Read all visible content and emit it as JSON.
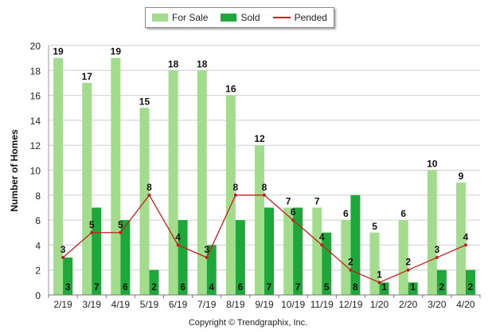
{
  "chart_data": {
    "type": "bar",
    "ylabel": "Number of Homes",
    "xlabel": "",
    "ylim": [
      0,
      20
    ],
    "yticks": [
      0,
      2,
      4,
      6,
      8,
      10,
      12,
      14,
      16,
      18,
      20
    ],
    "grid": true,
    "legend_position": "top-center",
    "categories": [
      "2/19",
      "3/19",
      "4/19",
      "5/19",
      "6/19",
      "7/19",
      "8/19",
      "9/19",
      "10/19",
      "11/19",
      "12/19",
      "1/20",
      "2/20",
      "3/20",
      "4/20"
    ],
    "series": [
      {
        "name": "For Sale",
        "kind": "bar",
        "color": "#a2dc8c",
        "values": [
          19,
          17,
          19,
          15,
          18,
          18,
          16,
          12,
          7,
          7,
          6,
          5,
          6,
          10,
          9
        ]
      },
      {
        "name": "Sold",
        "kind": "bar",
        "color": "#1fa83a",
        "values": [
          3,
          7,
          6,
          2,
          6,
          4,
          6,
          7,
          7,
          5,
          8,
          1,
          1,
          2,
          2
        ]
      },
      {
        "name": "Pended",
        "kind": "line",
        "color": "#c41e1e",
        "values": [
          3,
          5,
          5,
          8,
          4,
          3,
          8,
          8,
          6,
          4,
          2,
          1,
          2,
          3,
          4
        ]
      }
    ]
  },
  "copyright": "Copyright © Trendgraphix, Inc."
}
